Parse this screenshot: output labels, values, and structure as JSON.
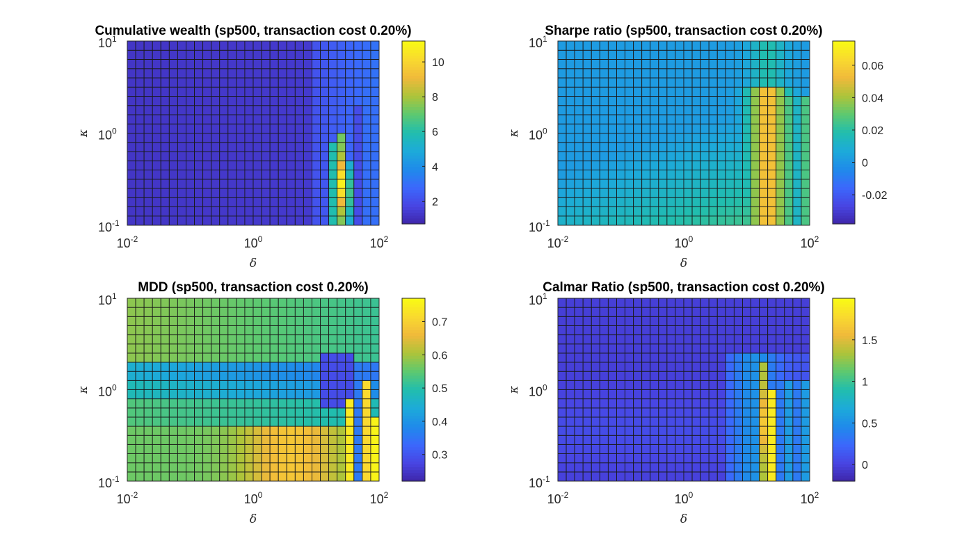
{
  "chart_data": [
    {
      "id": "wealth",
      "type": "heatmap",
      "title": "Cumulative wealth (sp500, transaction cost 0.20%)",
      "xlabel": "δ",
      "ylabel": "κ",
      "xscale": "log",
      "yscale": "log",
      "xlim": [
        0.01,
        100
      ],
      "ylim": [
        0.1,
        10
      ],
      "x_ticks": [
        {
          "base": "10",
          "exp": "-2"
        },
        {
          "base": "10",
          "exp": "0"
        },
        {
          "base": "10",
          "exp": "2"
        }
      ],
      "y_ticks": [
        {
          "base": "10",
          "exp": "-1"
        },
        {
          "base": "10",
          "exp": "0"
        },
        {
          "base": "10",
          "exp": "1"
        }
      ],
      "grid_cols": 30,
      "grid_rows": 20,
      "colorbar": {
        "min": 0.7,
        "max": 11.2,
        "ticks": [
          2,
          4,
          6,
          8,
          10
        ],
        "tick_labels": [
          "2",
          "4",
          "6",
          "8",
          "10"
        ]
      },
      "pattern": "wealth"
    },
    {
      "id": "sharpe",
      "type": "heatmap",
      "title": "Sharpe ratio (sp500, transaction cost 0.20%)",
      "xlabel": "δ",
      "ylabel": "κ",
      "xscale": "log",
      "yscale": "log",
      "xlim": [
        0.01,
        100
      ],
      "ylim": [
        0.1,
        10
      ],
      "x_ticks": [
        {
          "base": "10",
          "exp": "-2"
        },
        {
          "base": "10",
          "exp": "0"
        },
        {
          "base": "10",
          "exp": "2"
        }
      ],
      "y_ticks": [
        {
          "base": "10",
          "exp": "-1"
        },
        {
          "base": "10",
          "exp": "0"
        },
        {
          "base": "10",
          "exp": "1"
        }
      ],
      "grid_cols": 30,
      "grid_rows": 20,
      "colorbar": {
        "min": -0.038,
        "max": 0.075,
        "ticks": [
          -0.02,
          0,
          0.02,
          0.04,
          0.06
        ],
        "tick_labels": [
          "-0.02",
          "0",
          "0.02",
          "0.04",
          "0.06"
        ]
      },
      "pattern": "sharpe"
    },
    {
      "id": "mdd",
      "type": "heatmap",
      "title": "MDD (sp500, transaction cost 0.20%)",
      "xlabel": "δ",
      "ylabel": "κ",
      "xscale": "log",
      "yscale": "log",
      "xlim": [
        0.01,
        100
      ],
      "ylim": [
        0.1,
        10
      ],
      "x_ticks": [
        {
          "base": "10",
          "exp": "-2"
        },
        {
          "base": "10",
          "exp": "0"
        },
        {
          "base": "10",
          "exp": "2"
        }
      ],
      "y_ticks": [
        {
          "base": "10",
          "exp": "-1"
        },
        {
          "base": "10",
          "exp": "0"
        },
        {
          "base": "10",
          "exp": "1"
        }
      ],
      "grid_cols": 30,
      "grid_rows": 20,
      "colorbar": {
        "min": 0.22,
        "max": 0.77,
        "ticks": [
          0.3,
          0.4,
          0.5,
          0.6,
          0.7
        ],
        "tick_labels": [
          "0.3",
          "0.4",
          "0.5",
          "0.6",
          "0.7"
        ]
      },
      "pattern": "mdd"
    },
    {
      "id": "calmar",
      "type": "heatmap",
      "title": "Calmar Ratio (sp500, transaction cost 0.20%)",
      "xlabel": "δ",
      "ylabel": "κ",
      "xscale": "log",
      "yscale": "log",
      "xlim": [
        0.01,
        100
      ],
      "ylim": [
        0.1,
        10
      ],
      "x_ticks": [
        {
          "base": "10",
          "exp": "-2"
        },
        {
          "base": "10",
          "exp": "0"
        },
        {
          "base": "10",
          "exp": "2"
        }
      ],
      "y_ticks": [
        {
          "base": "10",
          "exp": "-1"
        },
        {
          "base": "10",
          "exp": "0"
        },
        {
          "base": "10",
          "exp": "1"
        }
      ],
      "grid_cols": 30,
      "grid_rows": 20,
      "colorbar": {
        "min": -0.2,
        "max": 2.0,
        "ticks": [
          0,
          0.5,
          1,
          1.5
        ],
        "tick_labels": [
          "0",
          "0.5",
          "1",
          "1.5"
        ]
      },
      "pattern": "calmar"
    }
  ],
  "colors": {
    "parula": [
      "#3E26A8",
      "#4845E3",
      "#3B68FC",
      "#1F8BEA",
      "#1DAAD9",
      "#21BDAE",
      "#5DC970",
      "#ADC43A",
      "#F0B93B",
      "#F9D92F",
      "#F9FB14"
    ],
    "cell_edge": "#1a1a1a",
    "axis": "#262626"
  }
}
